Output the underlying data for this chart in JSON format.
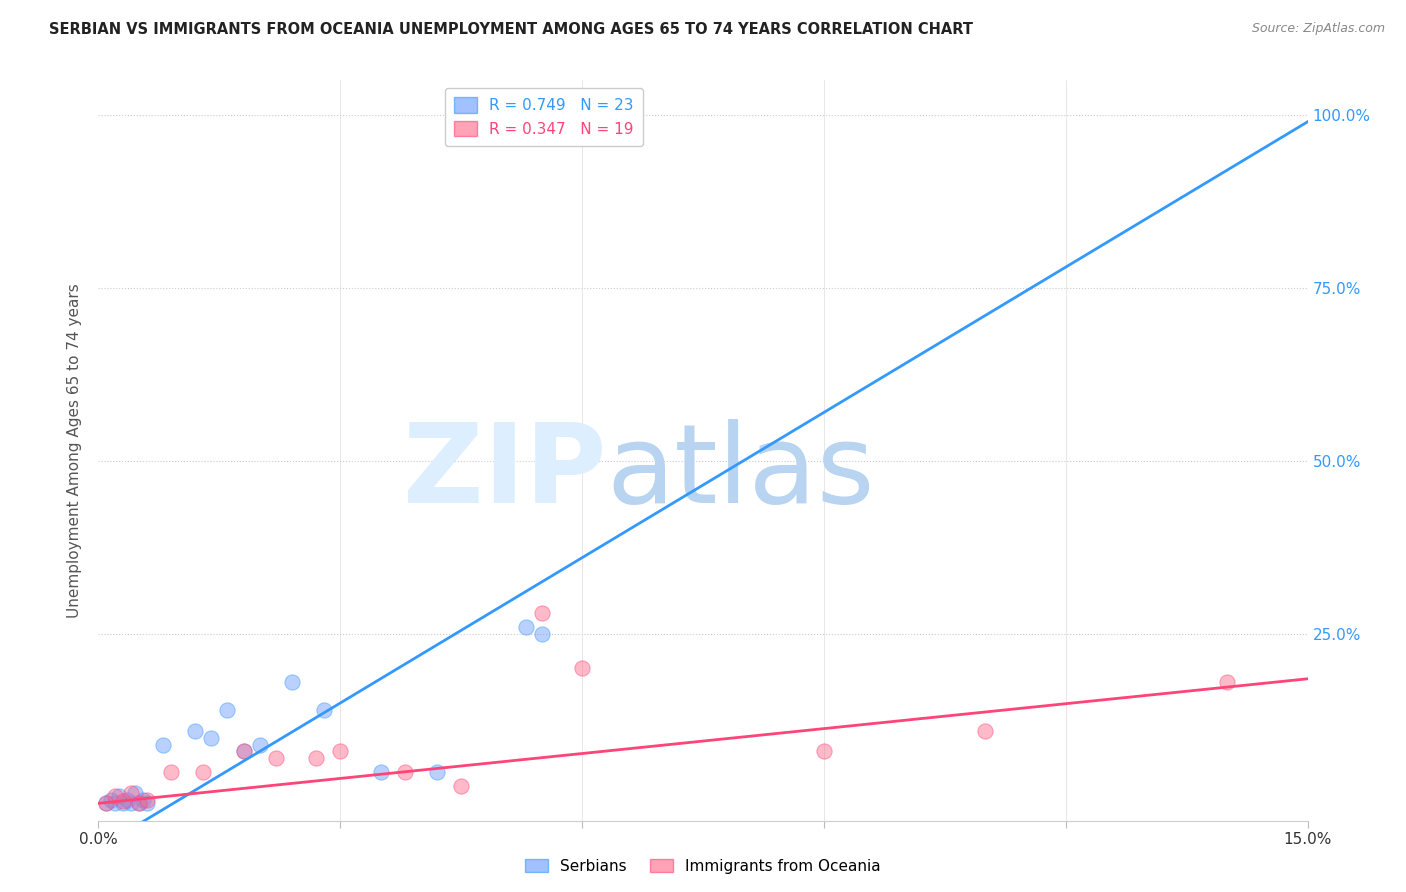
{
  "title": "SERBIAN VS IMMIGRANTS FROM OCEANIA UNEMPLOYMENT AMONG AGES 65 TO 74 YEARS CORRELATION CHART",
  "source": "Source: ZipAtlas.com",
  "ylabel": "Unemployment Among Ages 65 to 74 years",
  "xlim": [
    0.0,
    15.0
  ],
  "ylim": [
    -2.0,
    105.0
  ],
  "ytick_positions": [
    0.0,
    25.0,
    50.0,
    75.0,
    100.0
  ],
  "ytick_labels": [
    "",
    "25.0%",
    "50.0%",
    "75.0%",
    "100.0%"
  ],
  "xtick_positions": [
    0.0,
    3.0,
    6.0,
    9.0,
    12.0,
    15.0
  ],
  "xtick_labels": [
    "0.0%",
    "",
    "",
    "",
    "",
    "15.0%"
  ],
  "serbian_color": "#6699ff",
  "oceania_color": "#ff6688",
  "trendline_serbian_color": "#3399ff",
  "trendline_oceania_color": "#ff4477",
  "watermark_color": "#ddeeff",
  "watermark_text": "ZIPatlas",
  "legend_R_serbian": "R = 0.749",
  "legend_N_serbian": "N = 23",
  "legend_R_oceania": "R = 0.347",
  "legend_N_oceania": "N = 19",
  "serbian_scatter": [
    [
      0.1,
      0.5
    ],
    [
      0.15,
      1.0
    ],
    [
      0.2,
      0.5
    ],
    [
      0.25,
      1.5
    ],
    [
      0.3,
      0.5
    ],
    [
      0.35,
      1.0
    ],
    [
      0.4,
      0.5
    ],
    [
      0.45,
      2.0
    ],
    [
      0.5,
      0.5
    ],
    [
      0.55,
      1.0
    ],
    [
      0.6,
      0.5
    ],
    [
      0.8,
      9.0
    ],
    [
      1.2,
      11.0
    ],
    [
      1.4,
      10.0
    ],
    [
      1.6,
      14.0
    ],
    [
      1.8,
      8.0
    ],
    [
      2.0,
      9.0
    ],
    [
      2.4,
      18.0
    ],
    [
      2.8,
      14.0
    ],
    [
      3.5,
      5.0
    ],
    [
      4.2,
      5.0
    ],
    [
      5.3,
      26.0
    ],
    [
      5.5,
      25.0
    ]
  ],
  "oceania_scatter": [
    [
      0.1,
      0.5
    ],
    [
      0.2,
      1.5
    ],
    [
      0.3,
      0.8
    ],
    [
      0.4,
      2.0
    ],
    [
      0.5,
      0.5
    ],
    [
      0.6,
      1.0
    ],
    [
      0.9,
      5.0
    ],
    [
      1.3,
      5.0
    ],
    [
      1.8,
      8.0
    ],
    [
      2.2,
      7.0
    ],
    [
      2.7,
      7.0
    ],
    [
      3.0,
      8.0
    ],
    [
      3.8,
      5.0
    ],
    [
      4.5,
      3.0
    ],
    [
      5.5,
      28.0
    ],
    [
      6.0,
      20.0
    ],
    [
      9.0,
      8.0
    ],
    [
      11.0,
      11.0
    ],
    [
      14.0,
      18.0
    ]
  ],
  "serbian_marker_size": 120,
  "oceania_marker_size": 120,
  "trendline_serbian_slope": 7.0,
  "trendline_serbian_intercept": -6.0,
  "trendline_oceania_slope": 1.2,
  "trendline_oceania_intercept": 0.5
}
